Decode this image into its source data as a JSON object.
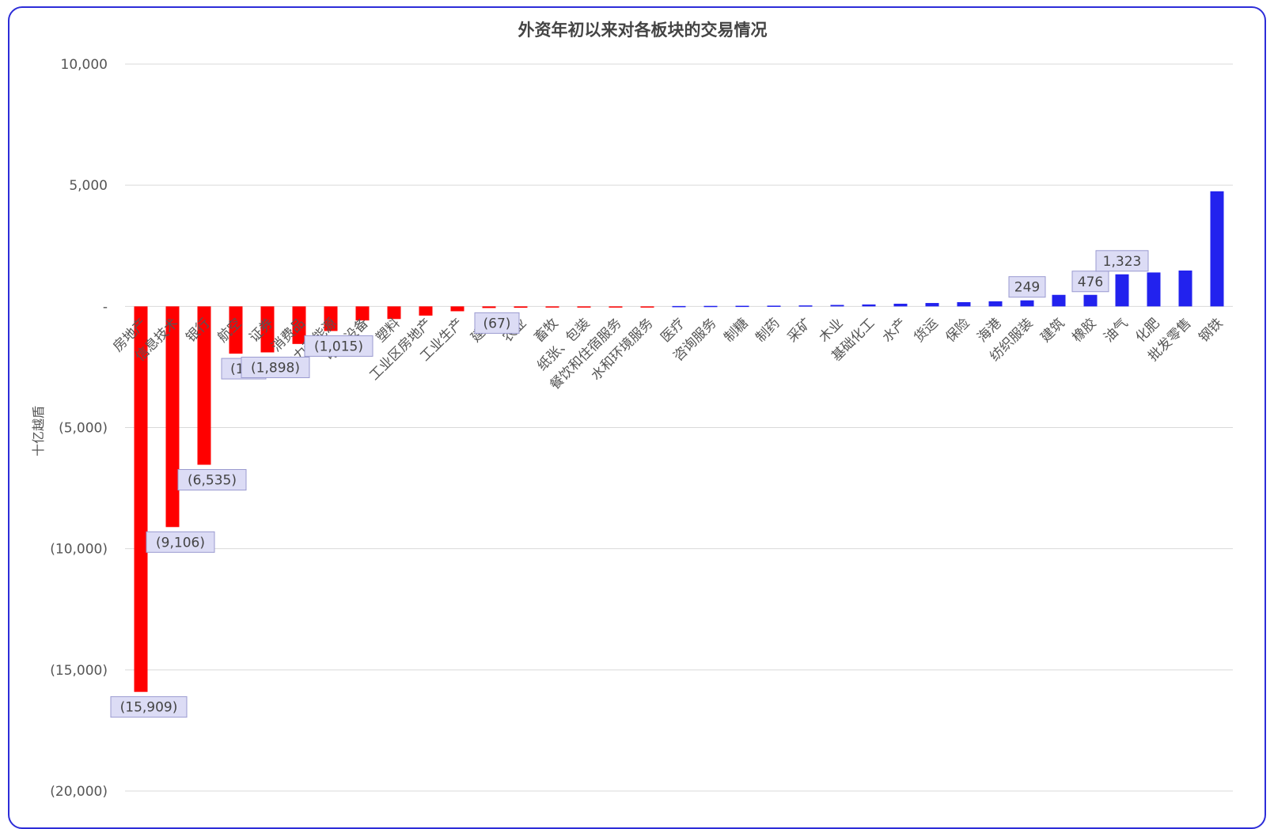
{
  "chart_data": {
    "type": "bar",
    "title": "外资年初以来对各板块的交易情况",
    "ylabel": "十亿越盾",
    "xlabel": "",
    "ylim": [
      -20000,
      10000
    ],
    "yticks": [
      10000,
      5000,
      0,
      -5000,
      -10000,
      -15000,
      -20000
    ],
    "ytick_labels": [
      "10,000",
      "5,000",
      "-",
      "(5,000)",
      "(10,000)",
      "(15,000)",
      "(20,000)"
    ],
    "grid": true,
    "legend": "none",
    "negative_color": "#ff0000",
    "positive_color": "#2222ee",
    "categories": [
      "房地产",
      "信息技术",
      "银行",
      "航空",
      "证券",
      "消费品",
      "电力和能源",
      "电子设备",
      "塑料",
      "工业区房地产",
      "工业生产",
      "建材",
      "农业",
      "畜牧",
      "纸张、包装",
      "餐饮和住宿服务",
      "水和环境服务",
      "医疗",
      "咨询服务",
      "制糖",
      "制药",
      "采矿",
      "木业",
      "基础化工",
      "水产",
      "货运",
      "保险",
      "海港",
      "纺织服装",
      "建筑",
      "橡胶",
      "油气",
      "化肥",
      "批发零售",
      "钢铁"
    ],
    "values": [
      -15909,
      -9106,
      -6535,
      -1950,
      -1898,
      -1550,
      -1015,
      -580,
      -520,
      -380,
      -200,
      -67,
      -55,
      -40,
      -35,
      -30,
      -20,
      15,
      20,
      25,
      30,
      40,
      60,
      80,
      110,
      140,
      175,
      210,
      249,
      476,
      476,
      1323,
      1400,
      1480,
      4750
    ],
    "data_labels": [
      {
        "index": 0,
        "text": "(15,909)"
      },
      {
        "index": 1,
        "text": "(9,106)"
      },
      {
        "index": 2,
        "text": "(6,535)"
      },
      {
        "index": 3,
        "text": "(1,9"
      },
      {
        "index": 4,
        "text": "(1,898)"
      },
      {
        "index": 6,
        "text": "(1,015)"
      },
      {
        "index": 11,
        "text": "(67)"
      },
      {
        "index": 28,
        "text": "249"
      },
      {
        "index": 30,
        "text": "476"
      },
      {
        "index": 31,
        "text": "1,323"
      }
    ]
  }
}
